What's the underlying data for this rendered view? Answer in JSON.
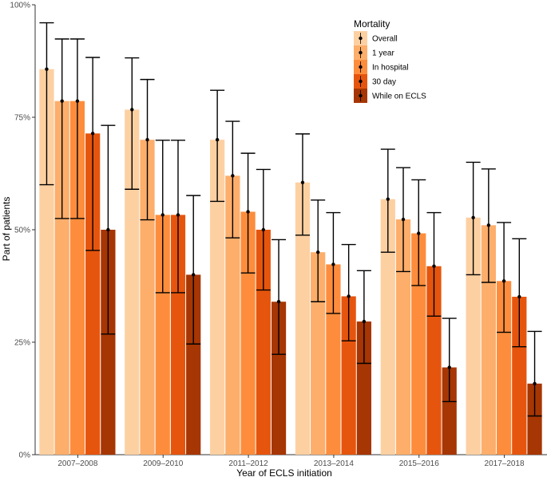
{
  "chart_data": {
    "type": "bar",
    "xlabel": "Year of ECLS initiation",
    "ylabel": "Part of patients",
    "ylim": [
      0,
      100
    ],
    "yticks": [
      0,
      25,
      50,
      75,
      100
    ],
    "ytick_labels": [
      "0%",
      "25%",
      "50%",
      "75%",
      "100%"
    ],
    "categories": [
      "2007–2008",
      "2009–2010",
      "2011–2012",
      "2013–2014",
      "2015–2016",
      "2017–2018"
    ],
    "legend": {
      "title": "Mortality",
      "placement": "top-right"
    },
    "error_bars": true,
    "series": [
      {
        "name": "Overall",
        "color": "#fdd0a2",
        "values": [
          85.7,
          76.7,
          70.0,
          60.5,
          56.8,
          52.7
        ],
        "lower": [
          60.0,
          59.0,
          56.3,
          48.8,
          45.0,
          40.0
        ],
        "upper": [
          96.0,
          88.2,
          81.0,
          71.3,
          67.9,
          65.0
        ]
      },
      {
        "name": "1 year",
        "color": "#fdae6b",
        "values": [
          78.6,
          70.0,
          62.0,
          45.0,
          52.3,
          51.0
        ],
        "lower": [
          52.5,
          52.2,
          48.2,
          34.0,
          40.7,
          38.3
        ],
        "upper": [
          92.4,
          83.4,
          74.1,
          56.6,
          63.8,
          63.5
        ]
      },
      {
        "name": "In hospital",
        "color": "#fd8d3c",
        "values": [
          78.6,
          53.3,
          54.0,
          42.3,
          49.2,
          38.6
        ],
        "lower": [
          52.5,
          36.0,
          40.4,
          31.4,
          37.6,
          27.2
        ],
        "upper": [
          92.4,
          69.9,
          67.0,
          53.8,
          61.1,
          51.6
        ]
      },
      {
        "name": "30 day",
        "color": "#e6550d",
        "values": [
          71.4,
          53.3,
          50.0,
          35.2,
          41.9,
          35.1
        ],
        "lower": [
          45.4,
          36.0,
          36.6,
          25.3,
          30.8,
          24.0
        ],
        "upper": [
          88.3,
          69.9,
          63.4,
          46.7,
          53.8,
          48.0
        ]
      },
      {
        "name": "While on ECLS",
        "color": "#a63603",
        "values": [
          50.0,
          40.0,
          34.0,
          29.6,
          19.4,
          15.8
        ],
        "lower": [
          26.8,
          24.6,
          22.3,
          20.3,
          11.8,
          8.6
        ],
        "upper": [
          73.2,
          57.6,
          47.8,
          40.9,
          30.3,
          27.4
        ]
      }
    ]
  }
}
